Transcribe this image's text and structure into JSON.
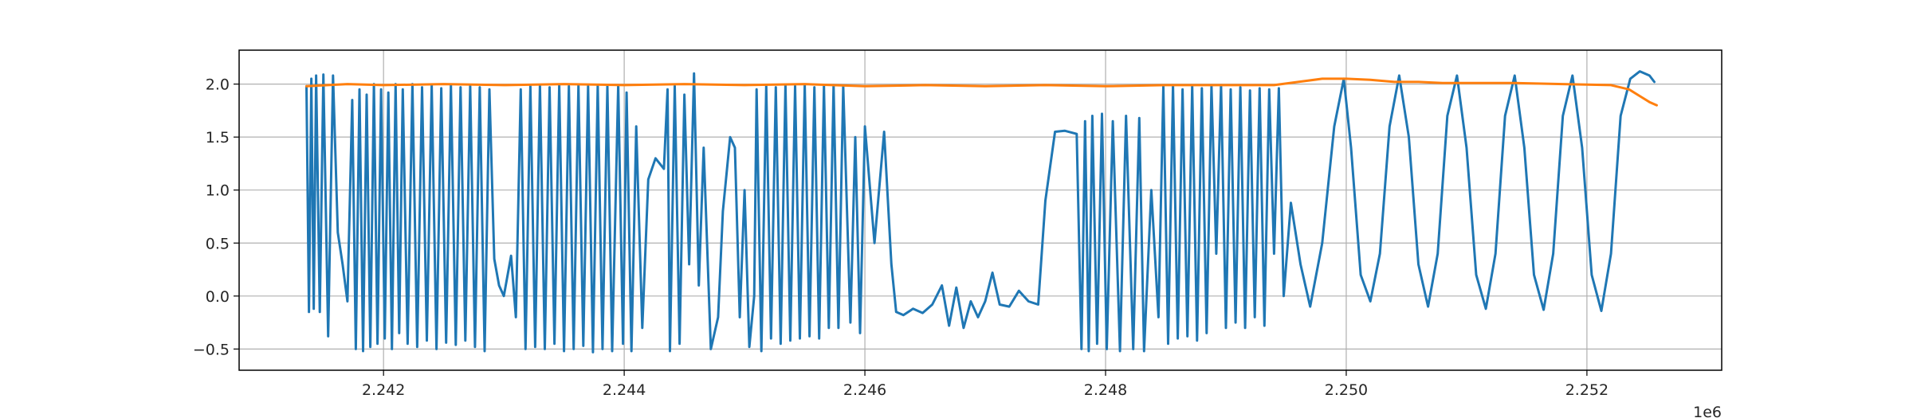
{
  "chart_data": {
    "type": "line",
    "title": "",
    "xlabel": "",
    "ylabel": "",
    "x_offset_label": "1e6",
    "xlim": [
      2240800,
      2253120
    ],
    "ylim": [
      -0.7,
      2.32
    ],
    "grid": true,
    "legend": "none",
    "x_ticks": [
      {
        "value": 2242000,
        "label": "2.242"
      },
      {
        "value": 2244000,
        "label": "2.244"
      },
      {
        "value": 2246000,
        "label": "2.246"
      },
      {
        "value": 2248000,
        "label": "2.248"
      },
      {
        "value": 2250000,
        "label": "2.250"
      },
      {
        "value": 2252000,
        "label": "2.252"
      }
    ],
    "y_ticks": [
      {
        "value": -0.5,
        "label": "−0.5"
      },
      {
        "value": 0.0,
        "label": "0.0"
      },
      {
        "value": 0.5,
        "label": "0.5"
      },
      {
        "value": 1.0,
        "label": "1.0"
      },
      {
        "value": 1.5,
        "label": "1.5"
      },
      {
        "value": 2.0,
        "label": "2.0"
      }
    ],
    "series": [
      {
        "color": "#1f77b4",
        "points": [
          [
            2241360,
            1.98
          ],
          [
            2241380,
            -0.15
          ],
          [
            2241400,
            2.05
          ],
          [
            2241420,
            -0.12
          ],
          [
            2241440,
            2.08
          ],
          [
            2241470,
            -0.15
          ],
          [
            2241500,
            2.09
          ],
          [
            2241540,
            -0.38
          ],
          [
            2241580,
            2.08
          ],
          [
            2241620,
            0.6
          ],
          [
            2241660,
            0.3
          ],
          [
            2241700,
            -0.05
          ],
          [
            2241740,
            1.85
          ],
          [
            2241770,
            -0.5
          ],
          [
            2241800,
            1.95
          ],
          [
            2241830,
            -0.52
          ],
          [
            2241860,
            1.9
          ],
          [
            2241890,
            -0.48
          ],
          [
            2241920,
            2.0
          ],
          [
            2241950,
            -0.45
          ],
          [
            2241980,
            1.95
          ],
          [
            2242010,
            -0.4
          ],
          [
            2242040,
            1.92
          ],
          [
            2242070,
            -0.5
          ],
          [
            2242100,
            2.0
          ],
          [
            2242130,
            -0.35
          ],
          [
            2242160,
            1.95
          ],
          [
            2242200,
            -0.45
          ],
          [
            2242240,
            2.0
          ],
          [
            2242280,
            -0.48
          ],
          [
            2242320,
            1.97
          ],
          [
            2242360,
            -0.42
          ],
          [
            2242400,
            1.99
          ],
          [
            2242440,
            -0.5
          ],
          [
            2242480,
            1.96
          ],
          [
            2242520,
            -0.44
          ],
          [
            2242560,
            1.99
          ],
          [
            2242600,
            -0.46
          ],
          [
            2242640,
            1.97
          ],
          [
            2242680,
            -0.42
          ],
          [
            2242720,
            1.98
          ],
          [
            2242760,
            -0.48
          ],
          [
            2242800,
            1.97
          ],
          [
            2242840,
            -0.52
          ],
          [
            2242880,
            1.95
          ],
          [
            2242920,
            0.35
          ],
          [
            2242960,
            0.1
          ],
          [
            2243000,
            0.0
          ],
          [
            2243060,
            0.38
          ],
          [
            2243100,
            -0.2
          ],
          [
            2243140,
            1.95
          ],
          [
            2243180,
            -0.5
          ],
          [
            2243220,
            1.98
          ],
          [
            2243260,
            -0.48
          ],
          [
            2243300,
            1.99
          ],
          [
            2243340,
            -0.5
          ],
          [
            2243380,
            1.97
          ],
          [
            2243420,
            -0.45
          ],
          [
            2243460,
            1.99
          ],
          [
            2243500,
            -0.52
          ],
          [
            2243540,
            1.98
          ],
          [
            2243580,
            -0.5
          ],
          [
            2243620,
            1.99
          ],
          [
            2243660,
            -0.47
          ],
          [
            2243700,
            1.98
          ],
          [
            2243740,
            -0.53
          ],
          [
            2243780,
            1.99
          ],
          [
            2243820,
            -0.5
          ],
          [
            2243860,
            1.98
          ],
          [
            2243900,
            -0.52
          ],
          [
            2243950,
            1.99
          ],
          [
            2243990,
            -0.45
          ],
          [
            2244020,
            1.92
          ],
          [
            2244060,
            -0.52
          ],
          [
            2244100,
            1.6
          ],
          [
            2244150,
            -0.3
          ],
          [
            2244200,
            1.1
          ],
          [
            2244260,
            1.3
          ],
          [
            2244330,
            1.2
          ],
          [
            2244360,
            1.95
          ],
          [
            2244380,
            -0.52
          ],
          [
            2244420,
            1.98
          ],
          [
            2244460,
            -0.45
          ],
          [
            2244500,
            1.9
          ],
          [
            2244540,
            0.3
          ],
          [
            2244580,
            2.1
          ],
          [
            2244620,
            0.1
          ],
          [
            2244660,
            1.4
          ],
          [
            2244720,
            -0.5
          ],
          [
            2244780,
            -0.2
          ],
          [
            2244820,
            0.8
          ],
          [
            2244880,
            1.5
          ],
          [
            2244920,
            1.4
          ],
          [
            2244960,
            -0.2
          ],
          [
            2245000,
            1.0
          ],
          [
            2245040,
            -0.48
          ],
          [
            2245080,
            0.0
          ],
          [
            2245100,
            1.95
          ],
          [
            2245140,
            -0.52
          ],
          [
            2245180,
            1.98
          ],
          [
            2245220,
            -0.4
          ],
          [
            2245260,
            1.97
          ],
          [
            2245300,
            -0.45
          ],
          [
            2245340,
            1.99
          ],
          [
            2245380,
            -0.42
          ],
          [
            2245420,
            1.98
          ],
          [
            2245460,
            -0.4
          ],
          [
            2245500,
            1.99
          ],
          [
            2245540,
            -0.38
          ],
          [
            2245580,
            1.97
          ],
          [
            2245620,
            -0.4
          ],
          [
            2245660,
            1.98
          ],
          [
            2245700,
            -0.3
          ],
          [
            2245740,
            1.99
          ],
          [
            2245780,
            -0.3
          ],
          [
            2245820,
            1.98
          ],
          [
            2245880,
            -0.25
          ],
          [
            2245920,
            1.5
          ],
          [
            2245960,
            -0.35
          ],
          [
            2246000,
            1.6
          ],
          [
            2246080,
            0.5
          ],
          [
            2246160,
            1.55
          ],
          [
            2246220,
            0.3
          ],
          [
            2246260,
            -0.15
          ],
          [
            2246320,
            -0.18
          ],
          [
            2246400,
            -0.12
          ],
          [
            2246480,
            -0.16
          ],
          [
            2246560,
            -0.08
          ],
          [
            2246640,
            0.1
          ],
          [
            2246700,
            -0.28
          ],
          [
            2246760,
            0.08
          ],
          [
            2246820,
            -0.3
          ],
          [
            2246880,
            -0.05
          ],
          [
            2246940,
            -0.2
          ],
          [
            2247000,
            -0.05
          ],
          [
            2247060,
            0.22
          ],
          [
            2247120,
            -0.08
          ],
          [
            2247200,
            -0.1
          ],
          [
            2247280,
            0.05
          ],
          [
            2247360,
            -0.05
          ],
          [
            2247440,
            -0.08
          ],
          [
            2247500,
            0.9
          ],
          [
            2247580,
            1.55
          ],
          [
            2247660,
            1.56
          ],
          [
            2247760,
            1.53
          ],
          [
            2247800,
            -0.5
          ],
          [
            2247830,
            1.65
          ],
          [
            2247860,
            -0.52
          ],
          [
            2247890,
            1.7
          ],
          [
            2247930,
            -0.45
          ],
          [
            2247970,
            1.72
          ],
          [
            2248010,
            -0.5
          ],
          [
            2248060,
            1.65
          ],
          [
            2248120,
            -0.52
          ],
          [
            2248170,
            1.7
          ],
          [
            2248230,
            -0.5
          ],
          [
            2248280,
            1.68
          ],
          [
            2248320,
            -0.52
          ],
          [
            2248380,
            1.0
          ],
          [
            2248440,
            -0.2
          ],
          [
            2248480,
            1.98
          ],
          [
            2248520,
            -0.45
          ],
          [
            2248560,
            1.99
          ],
          [
            2248600,
            -0.4
          ],
          [
            2248640,
            1.95
          ],
          [
            2248680,
            -0.38
          ],
          [
            2248720,
            1.98
          ],
          [
            2248760,
            -0.42
          ],
          [
            2248800,
            1.96
          ],
          [
            2248840,
            -0.35
          ],
          [
            2248880,
            1.98
          ],
          [
            2248920,
            0.4
          ],
          [
            2248960,
            1.99
          ],
          [
            2249000,
            -0.3
          ],
          [
            2249040,
            1.95
          ],
          [
            2249080,
            -0.25
          ],
          [
            2249120,
            1.97
          ],
          [
            2249160,
            -0.3
          ],
          [
            2249200,
            1.94
          ],
          [
            2249240,
            -0.2
          ],
          [
            2249280,
            1.96
          ],
          [
            2249320,
            -0.28
          ],
          [
            2249360,
            1.95
          ],
          [
            2249400,
            0.4
          ],
          [
            2249440,
            1.96
          ],
          [
            2249480,
            0.0
          ],
          [
            2249540,
            0.88
          ],
          [
            2249620,
            0.3
          ],
          [
            2249700,
            -0.1
          ],
          [
            2249800,
            0.5
          ],
          [
            2249900,
            1.6
          ],
          [
            2249980,
            2.05
          ],
          [
            2250040,
            1.4
          ],
          [
            2250120,
            0.2
          ],
          [
            2250200,
            -0.05
          ],
          [
            2250280,
            0.4
          ],
          [
            2250360,
            1.6
          ],
          [
            2250440,
            2.08
          ],
          [
            2250520,
            1.5
          ],
          [
            2250600,
            0.3
          ],
          [
            2250680,
            -0.1
          ],
          [
            2250760,
            0.4
          ],
          [
            2250840,
            1.7
          ],
          [
            2250920,
            2.08
          ],
          [
            2251000,
            1.4
          ],
          [
            2251080,
            0.2
          ],
          [
            2251160,
            -0.12
          ],
          [
            2251240,
            0.4
          ],
          [
            2251320,
            1.7
          ],
          [
            2251400,
            2.08
          ],
          [
            2251480,
            1.4
          ],
          [
            2251560,
            0.2
          ],
          [
            2251640,
            -0.13
          ],
          [
            2251720,
            0.4
          ],
          [
            2251800,
            1.7
          ],
          [
            2251880,
            2.08
          ],
          [
            2251960,
            1.4
          ],
          [
            2252040,
            0.2
          ],
          [
            2252120,
            -0.14
          ],
          [
            2252200,
            0.4
          ],
          [
            2252280,
            1.7
          ],
          [
            2252360,
            2.05
          ],
          [
            2252440,
            2.12
          ],
          [
            2252520,
            2.08
          ],
          [
            2252560,
            2.02
          ]
        ]
      },
      {
        "color": "#ff7f0e",
        "points": [
          [
            2241360,
            1.98
          ],
          [
            2241700,
            2.0
          ],
          [
            2242000,
            1.99
          ],
          [
            2242500,
            2.0
          ],
          [
            2243000,
            1.99
          ],
          [
            2243500,
            2.0
          ],
          [
            2244000,
            1.99
          ],
          [
            2244500,
            2.0
          ],
          [
            2245000,
            1.99
          ],
          [
            2245500,
            2.0
          ],
          [
            2246000,
            1.98
          ],
          [
            2246500,
            1.99
          ],
          [
            2247000,
            1.98
          ],
          [
            2247500,
            1.99
          ],
          [
            2248000,
            1.98
          ],
          [
            2248500,
            1.99
          ],
          [
            2249000,
            1.99
          ],
          [
            2249400,
            1.99
          ],
          [
            2249600,
            2.02
          ],
          [
            2249800,
            2.05
          ],
          [
            2250000,
            2.05
          ],
          [
            2250200,
            2.04
          ],
          [
            2250400,
            2.02
          ],
          [
            2250600,
            2.02
          ],
          [
            2250800,
            2.01
          ],
          [
            2251000,
            2.01
          ],
          [
            2251400,
            2.01
          ],
          [
            2251800,
            2.0
          ],
          [
            2252200,
            1.99
          ],
          [
            2252350,
            1.95
          ],
          [
            2252450,
            1.88
          ],
          [
            2252520,
            1.83
          ],
          [
            2252580,
            1.8
          ]
        ]
      }
    ]
  }
}
